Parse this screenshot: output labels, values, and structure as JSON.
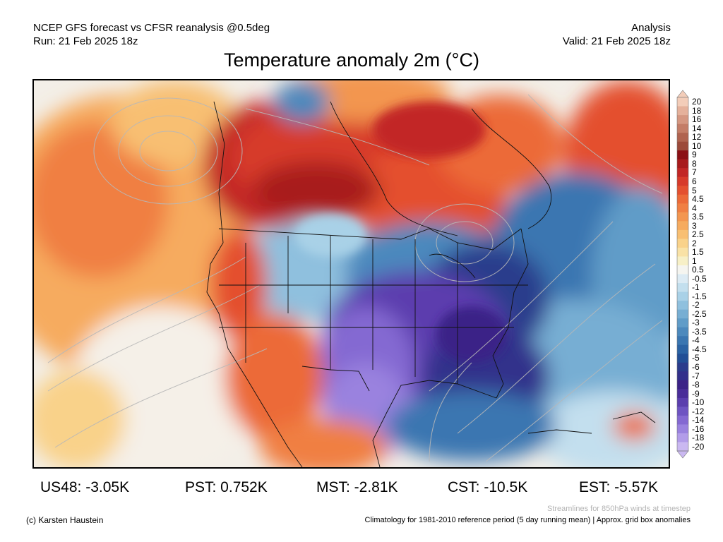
{
  "header": {
    "left_line1": "NCEP GFS forecast vs CFSR reanalysis @0.5deg",
    "left_line2": "Run: 21 Feb 2025 18z",
    "right_line1": "Analysis",
    "right_line2": "Valid: 21 Feb 2025 18z"
  },
  "title": "Temperature anomaly 2m (°C)",
  "colorbar": {
    "labels": [
      "20",
      "18",
      "16",
      "14",
      "12",
      "10",
      "9",
      "8",
      "7",
      "6",
      "5",
      "4.5",
      "4",
      "3.5",
      "3",
      "2.5",
      "2",
      "1.5",
      "1",
      "0.5",
      "-0.5",
      "-1",
      "-1.5",
      "-2",
      "-2.5",
      "-3",
      "-3.5",
      "-4",
      "-4.5",
      "-5",
      "-6",
      "-7",
      "-8",
      "-9",
      "-10",
      "-12",
      "-14",
      "-16",
      "-18",
      "-20"
    ],
    "colors": [
      "#f3cdb9",
      "#e5b19b",
      "#d59781",
      "#c47d67",
      "#b0634f",
      "#9c4a3a",
      "#8b0f14",
      "#a81a1c",
      "#c22625",
      "#d73a2a",
      "#e4502f",
      "#ec6a38",
      "#f07f43",
      "#f39650",
      "#f6ab5f",
      "#f8bf72",
      "#f9d28a",
      "#f9e2a6",
      "#f7f0c7",
      "#f5f5f0",
      "#dcebf4",
      "#c3dfee",
      "#a9d1e7",
      "#8fc0de",
      "#77aed3",
      "#609cc8",
      "#4c89bd",
      "#3a76b1",
      "#2b63a4",
      "#224f96",
      "#2b3c8c",
      "#33308b",
      "#3b2287",
      "#4a2d99",
      "#5b3eae",
      "#6e54c2",
      "#8469d2",
      "#9a82df",
      "#b29ce9",
      "#cab8f1"
    ]
  },
  "stats": {
    "us48": "US48: -3.05K",
    "pst": "PST: 0.752K",
    "mst": "MST: -2.81K",
    "cst": "CST: -10.5K",
    "est": "EST: -5.57K"
  },
  "footer": {
    "credit": "(c) Karsten Haustein",
    "streamlines": "Streamlines for 850hPa winds at timestep",
    "climatology": "Climatology for 1981-2010 reference period (5 day running mean) | Approx. grid box anomalies"
  }
}
